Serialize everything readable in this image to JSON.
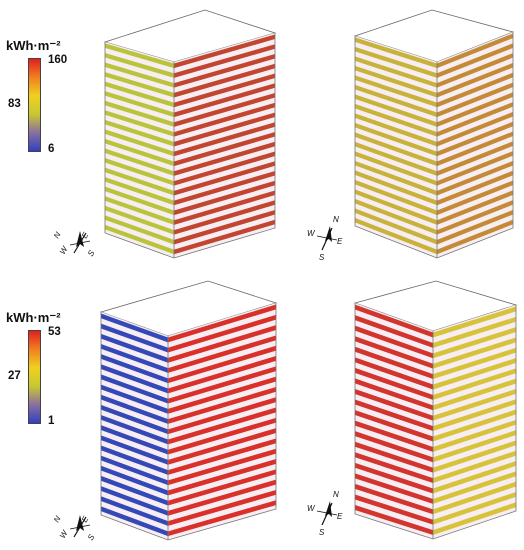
{
  "legends": [
    {
      "title": "kWh·m⁻²",
      "ticks": {
        "max": "160",
        "mid": "83",
        "min": "6"
      },
      "gradient": [
        "#e02020",
        "#f08020",
        "#f0d020",
        "#c8c830",
        "#8a70a0",
        "#3040c0"
      ]
    },
    {
      "title": "kWh·m⁻²",
      "ticks": {
        "max": "53",
        "mid": "27",
        "min": "1"
      },
      "gradient": [
        "#e02020",
        "#f08020",
        "#f0d020",
        "#c8c830",
        "#8a70a0",
        "#3040c0"
      ]
    }
  ],
  "compass": {
    "n": "N",
    "s": "S",
    "e": "E",
    "w": "W"
  },
  "buildings": [
    {
      "id": "top-left",
      "floors": 20,
      "left_color": "#b9c43a",
      "right_color": "#c2452f",
      "top_color": "#ffffff"
    },
    {
      "id": "top-right",
      "floors": 20,
      "left_color": "#c9b23a",
      "right_color": "#c48a36",
      "top_color": "#ffffff"
    },
    {
      "id": "bottom-left",
      "floors": 20,
      "left_color": "#3548b8",
      "right_color": "#d9302a",
      "top_color": "#ffffff"
    },
    {
      "id": "bottom-right",
      "floors": 20,
      "left_color": "#d2342e",
      "right_color": "#d8c23a",
      "top_color": "#ffffff"
    }
  ]
}
